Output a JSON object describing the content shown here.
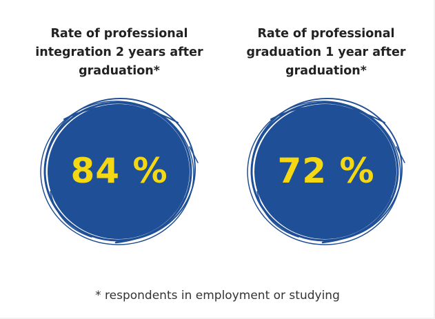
{
  "stats": [
    {
      "title_lines": [
        "Rate of professional",
        "integration 2 years after",
        "graduation*"
      ],
      "value": "84 %"
    },
    {
      "title_lines": [
        "Rate of professional",
        "graduation 1 year after",
        "graduation*"
      ],
      "value": "72 %"
    }
  ],
  "footnote": "* respondents in employment or studying",
  "colors": {
    "circle_fill": "#1f4f96",
    "value_text": "#f4d814",
    "title_text": "#222222"
  }
}
